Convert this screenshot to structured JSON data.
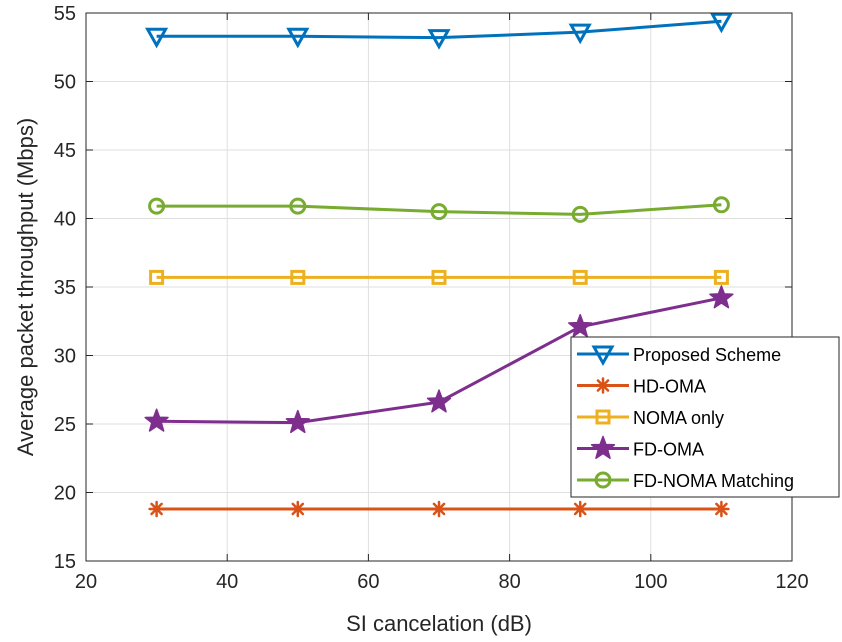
{
  "chart_data": {
    "type": "line",
    "xlabel": "SI cancelation (dB)",
    "ylabel": "Average packet throughput (Mbps)",
    "xlim": [
      20,
      120
    ],
    "ylim": [
      15,
      55
    ],
    "xticks": [
      20,
      40,
      60,
      80,
      100,
      120
    ],
    "yticks": [
      15,
      20,
      25,
      30,
      35,
      40,
      45,
      50,
      55
    ],
    "grid": true,
    "legend_position": "right",
    "x": [
      30,
      50,
      70,
      90,
      110
    ],
    "series": [
      {
        "name": "Proposed Scheme",
        "values": [
          53.3,
          53.3,
          53.2,
          53.6,
          54.4
        ],
        "color": "#0072BD",
        "marker": "triangle-down"
      },
      {
        "name": "HD-OMA",
        "values": [
          18.8,
          18.8,
          18.8,
          18.8,
          18.8
        ],
        "color": "#D95319",
        "marker": "asterisk"
      },
      {
        "name": "NOMA only",
        "values": [
          35.7,
          35.7,
          35.7,
          35.7,
          35.7
        ],
        "color": "#EDB120",
        "marker": "square"
      },
      {
        "name": "FD-OMA",
        "values": [
          25.2,
          25.1,
          26.6,
          32.1,
          34.2
        ],
        "color": "#7E2F8E",
        "marker": "star"
      },
      {
        "name": "FD-NOMA Matching",
        "values": [
          40.9,
          40.9,
          40.5,
          40.3,
          41.0
        ],
        "color": "#77AC30",
        "marker": "circle"
      }
    ]
  }
}
